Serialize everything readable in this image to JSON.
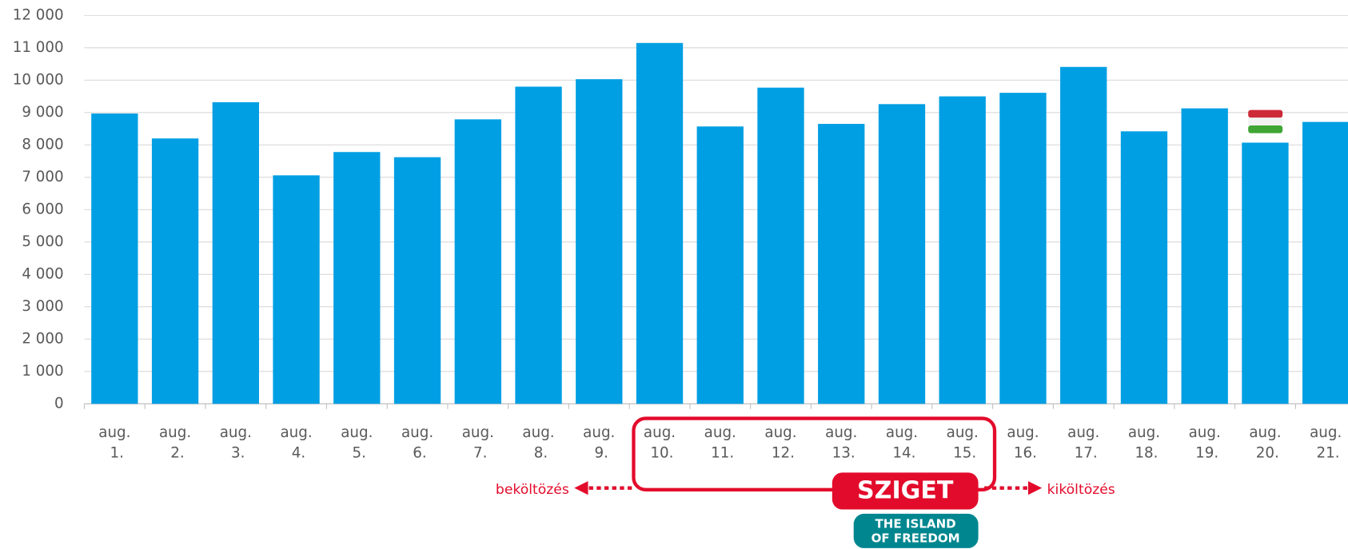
{
  "chart_data": {
    "type": "bar",
    "categories": [
      "aug. 1.",
      "aug. 2.",
      "aug. 3.",
      "aug. 4.",
      "aug. 5.",
      "aug. 6.",
      "aug. 7.",
      "aug. 8.",
      "aug. 9.",
      "aug. 10.",
      "aug. 11.",
      "aug. 12.",
      "aug. 13.",
      "aug. 14.",
      "aug. 15.",
      "aug. 16.",
      "aug. 17.",
      "aug. 18.",
      "aug. 19.",
      "aug. 20.",
      "aug. 21."
    ],
    "values": [
      8970,
      8200,
      9320,
      7060,
      7780,
      7620,
      8790,
      9800,
      10030,
      11150,
      8570,
      9770,
      8650,
      9260,
      9500,
      9610,
      10410,
      8420,
      9130,
      8070,
      8710
    ],
    "color": "#009fe3",
    "ylim": [
      0,
      12000
    ],
    "yticks": [
      0,
      {
        "value": 1000,
        "label": "1 000"
      },
      {
        "value": 2000,
        "label": "2 000"
      },
      {
        "value": 3000,
        "label": "3 000"
      },
      {
        "value": 4000,
        "label": "4 000"
      },
      {
        "value": 5000,
        "label": "5 000"
      },
      {
        "value": 6000,
        "label": "6 000"
      },
      {
        "value": 7000,
        "label": "7 000"
      },
      {
        "value": 8000,
        "label": "8 000"
      },
      {
        "value": 9000,
        "label": "9 000"
      },
      {
        "value": 10000,
        "label": "10 000"
      },
      {
        "value": 11000,
        "label": "11 000"
      },
      {
        "value": 12000,
        "label": "12 000"
      }
    ],
    "grid": true,
    "annotations": {
      "left": "beköltözés",
      "right": "kiköltözés",
      "logo": "SZIGET",
      "logo_sub1": "THE ISLAND",
      "logo_sub2": "OF FREEDOM"
    }
  }
}
